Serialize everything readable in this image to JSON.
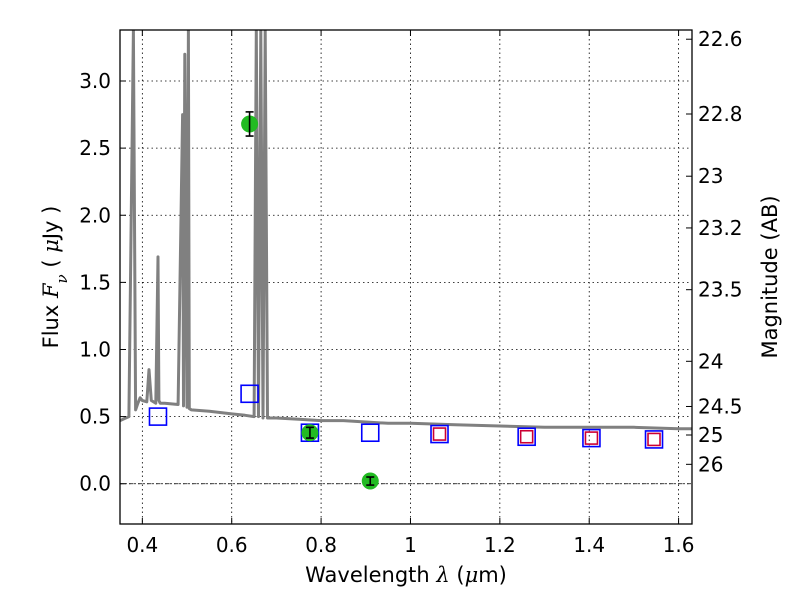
{
  "chart_data": {
    "type": "scatter",
    "title": "",
    "xlabel": {
      "pre": "Wavelength  ",
      "sym": "λ",
      "post": " (",
      "mu": "μ",
      "unit": "m)"
    },
    "ylabel": {
      "pre": "Flux  ",
      "sym": "F",
      "sub": "ν",
      "post": "  ( ",
      "mu": "μ",
      "unit": "Jy )"
    },
    "y2label": "Magnitude (AB)",
    "xlim": [
      0.35,
      1.63
    ],
    "ylim": [
      -0.3,
      3.38
    ],
    "grid": true,
    "x_ticks": [
      0.4,
      0.6,
      0.8,
      1.0,
      1.2,
      1.4,
      1.6
    ],
    "x_tick_labels": [
      "0.4",
      "0.6",
      "0.8",
      "1",
      "1.2",
      "1.4",
      "1.6"
    ],
    "y_ticks": [
      0.0,
      0.5,
      1.0,
      1.5,
      2.0,
      2.5,
      3.0
    ],
    "y_tick_labels": [
      "0.0",
      "0.5",
      "1.0",
      "1.5",
      "2.0",
      "2.5",
      "3.0"
    ],
    "mag_ticks": [
      "22.6",
      "22.8",
      "23",
      "23.2",
      "23.5",
      "24",
      "24.5",
      "25",
      "26"
    ],
    "series": [
      {
        "style": "line",
        "color": "#808080",
        "x": [
          0.35,
          0.37,
          0.38,
          0.385,
          0.39,
          0.395,
          0.4,
          0.41,
          0.415,
          0.42,
          0.43,
          0.435,
          0.437,
          0.44,
          0.45,
          0.48,
          0.49,
          0.492,
          0.495,
          0.5,
          0.503,
          0.505,
          0.51,
          0.55,
          0.6,
          0.63,
          0.65,
          0.655,
          0.66,
          0.665,
          0.67,
          0.675,
          0.68,
          0.685,
          0.7,
          0.75,
          0.8,
          0.85,
          0.9,
          0.95,
          1.0,
          1.1,
          1.2,
          1.3,
          1.4,
          1.5,
          1.6,
          1.63
        ],
        "y": [
          0.47,
          0.5,
          3.38,
          0.55,
          0.6,
          0.64,
          0.62,
          0.61,
          0.85,
          0.62,
          0.6,
          1.69,
          0.62,
          0.6,
          0.6,
          0.59,
          2.75,
          0.58,
          3.2,
          0.57,
          3.38,
          0.56,
          0.55,
          0.54,
          0.52,
          0.51,
          0.5,
          3.38,
          0.5,
          3.38,
          0.49,
          3.38,
          0.49,
          0.49,
          0.49,
          0.48,
          0.47,
          0.47,
          0.46,
          0.45,
          0.45,
          0.44,
          0.43,
          0.42,
          0.42,
          0.42,
          0.41,
          0.41
        ]
      },
      {
        "style": "open-square",
        "color": "#0000ff",
        "x": [
          0.435,
          0.64,
          0.775,
          0.91,
          1.065,
          1.26,
          1.405,
          1.545
        ],
        "y": [
          0.5,
          0.67,
          0.38,
          0.38,
          0.37,
          0.35,
          0.34,
          0.33
        ]
      },
      {
        "style": "small-open-square",
        "color": "#cc0033",
        "x": [
          1.065,
          1.26,
          1.405,
          1.545
        ],
        "y": [
          0.37,
          0.35,
          0.34,
          0.33
        ]
      },
      {
        "style": "point-errorbar",
        "color": "#22bb22",
        "x": [
          0.64,
          0.775,
          0.91
        ],
        "y": [
          2.68,
          0.38,
          0.02
        ],
        "yerr": [
          0.09,
          0.04,
          0.03
        ]
      }
    ]
  }
}
